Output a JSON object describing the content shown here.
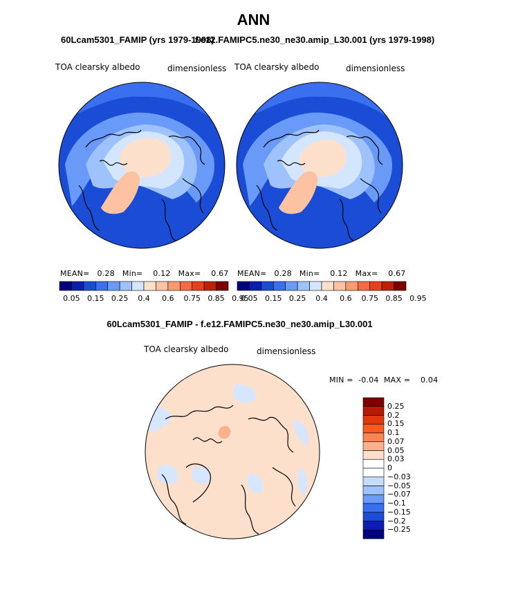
{
  "title": "ANN",
  "colors": {
    "abs_levels": [
      "#00007f",
      "#0a1fb0",
      "#1a4cd6",
      "#3a6ff0",
      "#6a9af8",
      "#9ec2fc",
      "#d4e6fe",
      "#fde0cc",
      "#fcc2a2",
      "#fa9a70",
      "#f56a40",
      "#e8401a",
      "#c02008",
      "#7f0000"
    ],
    "diff_levels": [
      "#7f0000",
      "#b81b04",
      "#e0380f",
      "#fb5a20",
      "#fc8455",
      "#fcb08b",
      "#fde0cc",
      "#ffffff",
      "#c6dcfd",
      "#9ec2fc",
      "#6a9af8",
      "#3a6ff0",
      "#1a4cd6",
      "#0a1fb0",
      "#00007f"
    ]
  },
  "chart_data": [
    {
      "type": "heatmap",
      "panel": "case1",
      "projection": "north polar stereographic",
      "header": "60Lcam5301_FAMIP (yrs 1979-1998)",
      "field_label": "TOA clearsky albedo",
      "units": "dimensionless",
      "stats": {
        "mean_label": "MEAN=",
        "mean": "0.28",
        "min_label": "Min=",
        "min": "0.12",
        "max_label": "Max=",
        "max": "0.67"
      },
      "colorbar_ticks": [
        "0.05",
        "0.15",
        "0.25",
        "0.4",
        "0.6",
        "0.75",
        "0.85",
        "0.95"
      ],
      "regions": {
        "ocean_midlat": 0.2,
        "arctic_ocean": 0.4,
        "central_arctic": 0.6,
        "greenland": 0.67
      }
    },
    {
      "type": "heatmap",
      "panel": "case2",
      "projection": "north polar stereographic",
      "header": "f.e12.FAMIPC5.ne30_ne30.amip_L30.001 (yrs 1979-1998)",
      "field_label": "TOA clearsky albedo",
      "units": "dimensionless",
      "stats": {
        "mean_label": "MEAN=",
        "mean": "0.28",
        "min_label": "Min=",
        "min": "0.12",
        "max_label": "Max=",
        "max": "0.67"
      },
      "colorbar_ticks": [
        "0.05",
        "0.15",
        "0.25",
        "0.4",
        "0.6",
        "0.75",
        "0.85",
        "0.95"
      ],
      "regions": {
        "ocean_midlat": 0.2,
        "arctic_ocean": 0.4,
        "central_arctic": 0.6,
        "greenland": 0.67
      }
    },
    {
      "type": "heatmap",
      "panel": "difference",
      "projection": "north polar stereographic",
      "header": "60Lcam5301_FAMIP - f.e12.FAMIPC5.ne30_ne30.amip_L30.001",
      "field_label": "TOA clearsky albedo",
      "units": "dimensionless",
      "stats": {
        "min_label": "MIN =",
        "min": "-0.04",
        "max_label": "MAX =",
        "max": "0.04"
      },
      "colorbar_ticks": [
        "0.25",
        "0.2",
        "0.15",
        "0.1",
        "0.07",
        "0.05",
        "0.03",
        "0",
        "−0.03",
        "−0.05",
        "−0.07",
        "−0.1",
        "−0.15",
        "−0.2",
        "−0.25"
      ],
      "regions": {
        "background": 0.015,
        "central_arctic_patch": 0.04,
        "negative_patches": -0.015
      }
    }
  ]
}
